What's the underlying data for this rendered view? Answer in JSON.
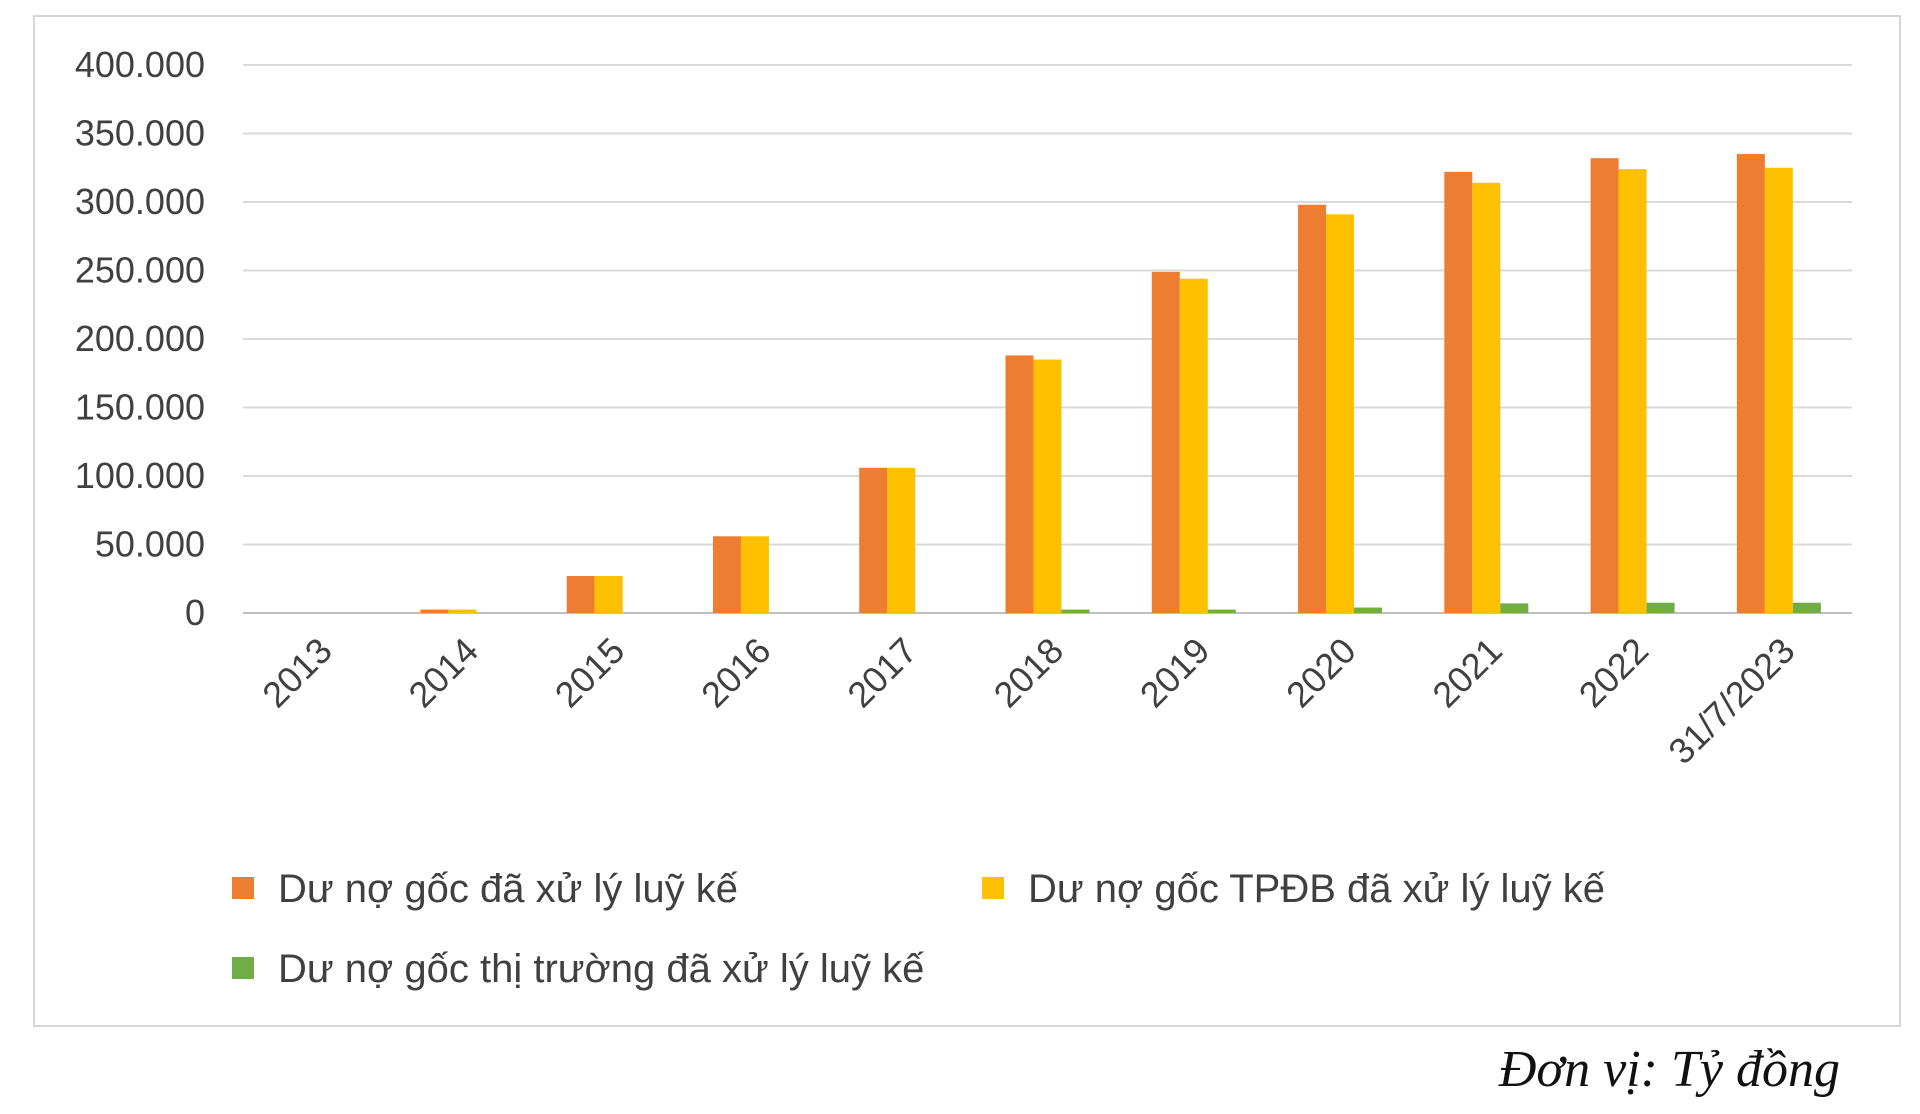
{
  "chart_data": {
    "type": "bar",
    "categories": [
      "2013",
      "2014",
      "2015",
      "2016",
      "2017",
      "2018",
      "2019",
      "2020",
      "2021",
      "2022",
      "31/7/2023"
    ],
    "series": [
      {
        "name": "Dư nợ gốc đã xử lý luỹ kế",
        "color": "#ED7D31",
        "values": [
          0,
          2500,
          27000,
          56000,
          106000,
          188000,
          249000,
          298000,
          322000,
          332000,
          335000
        ]
      },
      {
        "name": "Dư nợ gốc TPĐB đã xử lý luỹ kế",
        "color": "#FFC000",
        "values": [
          0,
          2500,
          27000,
          56000,
          106000,
          185000,
          244000,
          291000,
          314000,
          324000,
          325000
        ]
      },
      {
        "name": "Dư nợ gốc thị trường đã xử lý luỹ kế",
        "color": "#70AD47",
        "values": [
          0,
          0,
          0,
          0,
          0,
          2500,
          2500,
          4000,
          7000,
          7500,
          7500
        ]
      }
    ],
    "yticks": [
      "0",
      "50.000",
      "100.000",
      "150.000",
      "200.000",
      "250.000",
      "300.000",
      "350.000",
      "400.000"
    ],
    "ylim": [
      0,
      400000
    ],
    "grid": true,
    "legend_position": "bottom"
  },
  "unit_note": "Đơn vị: Tỷ đồng"
}
